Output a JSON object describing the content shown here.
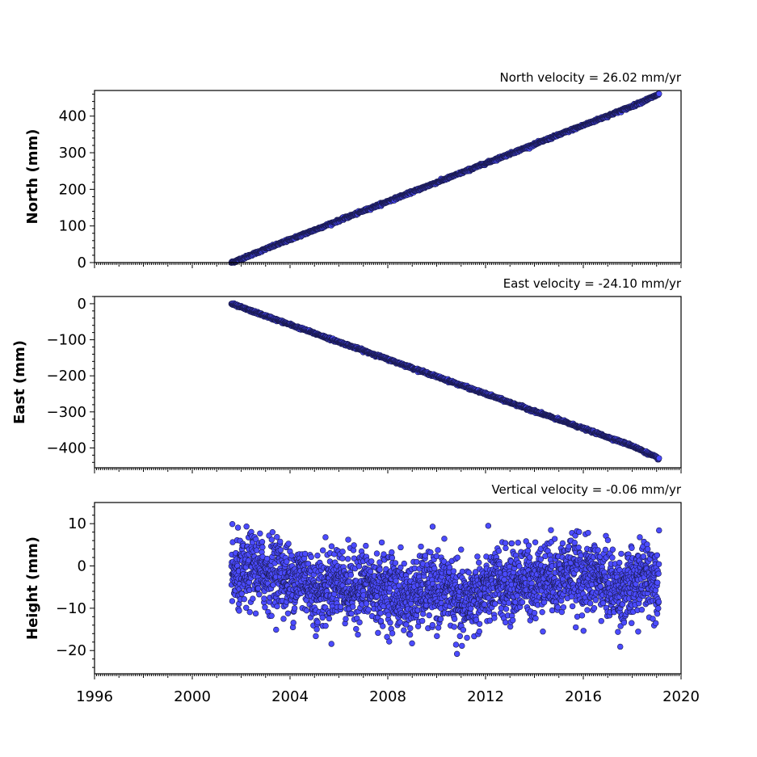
{
  "colors": {
    "marker_fill": "#4b4bff",
    "marker_edge": "#1a1a50",
    "background": "#ffffff"
  },
  "chart_data": [
    {
      "type": "scatter",
      "title": "North velocity = 26.02 mm/yr",
      "xlabel": "",
      "ylabel": "North (mm)",
      "xlim": [
        1996,
        2020
      ],
      "ylim": [
        0,
        470
      ],
      "yticks": [
        0,
        100,
        200,
        300,
        400
      ],
      "ytick_labels": [
        "0",
        "100",
        "200",
        "300",
        "400"
      ],
      "grid": false,
      "series": [
        {
          "x": [
            2001.6,
            2002.0,
            2003.0,
            2004.0,
            2005.0,
            2006.0,
            2007.0,
            2008.0,
            2009.0,
            2010.0,
            2011.0,
            2012.0,
            2013.0,
            2014.0,
            2015.0,
            2016.0,
            2017.0,
            2018.0,
            2019.1
          ],
          "y": [
            0,
            10,
            37,
            63,
            89,
            115,
            141,
            167,
            193,
            219,
            245,
            271,
            297,
            323,
            349,
            375,
            401,
            427,
            460
          ]
        }
      ]
    },
    {
      "type": "scatter",
      "title": "East velocity = -24.10 mm/yr",
      "xlabel": "",
      "ylabel": "East (mm)",
      "xlim": [
        1996,
        2020
      ],
      "ylim": [
        -455,
        20
      ],
      "yticks": [
        0,
        -100,
        -200,
        -300,
        -400
      ],
      "ytick_labels": [
        "0",
        "−100",
        "−200",
        "−300",
        "−400"
      ],
      "grid": false,
      "series": [
        {
          "x": [
            2001.6,
            2002.0,
            2003.0,
            2004.0,
            2005.0,
            2006.0,
            2007.0,
            2008.0,
            2009.0,
            2010.0,
            2011.0,
            2012.0,
            2013.0,
            2014.0,
            2015.0,
            2016.0,
            2017.0,
            2018.0,
            2019.1
          ],
          "y": [
            0,
            -10,
            -34,
            -58,
            -82,
            -106,
            -130,
            -154,
            -178,
            -202,
            -226,
            -250,
            -274,
            -298,
            -322,
            -346,
            -370,
            -394,
            -430
          ]
        }
      ]
    },
    {
      "type": "scatter",
      "title": "Vertical velocity = -0.06 mm/yr",
      "xlabel": "",
      "ylabel": "Height (mm)",
      "xlim": [
        1996,
        2020
      ],
      "ylim": [
        -25.5,
        15
      ],
      "yticks": [
        10,
        0,
        -10,
        -20
      ],
      "ytick_labels": [
        "10",
        "0",
        "−10",
        "−20"
      ],
      "xticks": [
        1996,
        2000,
        2004,
        2008,
        2012,
        2016,
        2020
      ],
      "xtick_labels": [
        "1996",
        "2000",
        "2004",
        "2008",
        "2012",
        "2016",
        "2020"
      ],
      "grid": false,
      "series": [
        {
          "x": [
            2001.6,
            2002.0,
            2002.5,
            2003.0,
            2003.5,
            2004.0,
            2004.5,
            2005.0,
            2005.5,
            2006.0,
            2006.5,
            2007.0,
            2007.5,
            2008.0,
            2008.5,
            2009.0,
            2009.5,
            2010.0,
            2010.5,
            2011.0,
            2011.5,
            2012.0,
            2012.5,
            2013.0,
            2013.5,
            2014.0,
            2014.5,
            2015.0,
            2015.5,
            2016.0,
            2016.5,
            2017.0,
            2017.5,
            2018.0,
            2018.5,
            2019.1
          ],
          "y": [
            -2,
            -3,
            0,
            -2,
            -1,
            -4,
            -2,
            -6,
            -5,
            -3,
            -6,
            -4,
            -6,
            -5,
            -7,
            -8,
            -5,
            -6,
            -5,
            -10,
            -7,
            -6,
            -4,
            -5,
            -3,
            -4,
            -2,
            -3,
            -1,
            -3,
            -2,
            -4,
            -6,
            -5,
            -2,
            -3
          ]
        }
      ]
    }
  ]
}
